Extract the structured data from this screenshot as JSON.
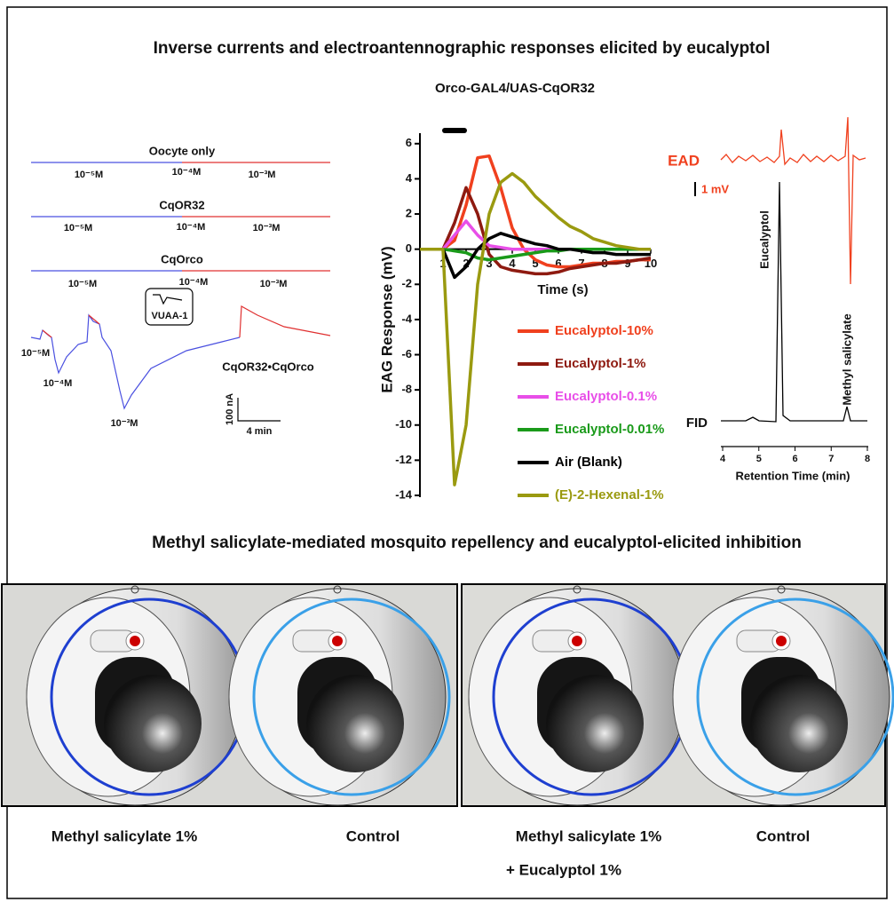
{
  "header": {
    "title": "Inverse currents and electroantennographic responses elicited by eucalyptol"
  },
  "left_panel": {
    "traces": [
      {
        "label": "Oocyte only",
        "concentrations": [
          "10⁻⁵M",
          "10⁻⁴M",
          "10⁻³M"
        ]
      },
      {
        "label": "CqOR32",
        "concentrations": [
          "10⁻⁵M",
          "10⁻⁴M",
          "10⁻³M"
        ]
      },
      {
        "label": "CqOrco",
        "concentrations": [
          "10⁻⁵M",
          "10⁻⁴M",
          "10⁻³M"
        ]
      },
      {
        "label": "CqOR32•CqOrco",
        "concentrations": [
          "10⁻⁵M",
          "10⁻⁴M",
          "10⁻³M"
        ]
      }
    ],
    "inset_label": "VUAA-1",
    "scale_y": "100 nA",
    "scale_x": "4 min"
  },
  "chart_data": {
    "type": "line",
    "title": "Orco-GAL4/UAS-CqOR32",
    "x_label": "Time (s)",
    "y_label": "EAG Response (mV)",
    "x": [
      0,
      0.5,
      1,
      1.5,
      2,
      2.5,
      3,
      3.5,
      4,
      4.5,
      5,
      5.5,
      6,
      6.5,
      7,
      7.5,
      8,
      8.5,
      9,
      9.5,
      10
    ],
    "xlim": [
      0,
      10
    ],
    "xticks": [
      1,
      2,
      3,
      4,
      5,
      6,
      7,
      8,
      9,
      10
    ],
    "ylim": [
      -14,
      7
    ],
    "yticks": [
      -14,
      -12,
      -10,
      -8,
      -6,
      -4,
      -2,
      0,
      2,
      4,
      6
    ],
    "series": [
      {
        "name": "Eucalyptol-10%",
        "color": "#f0401e",
        "values": [
          0,
          0,
          0,
          0.5,
          2.5,
          5.2,
          5.3,
          3.5,
          1.2,
          0,
          -0.6,
          -0.9,
          -1,
          -1,
          -0.9,
          -0.8,
          -0.8,
          -0.7,
          -0.7,
          -0.6,
          -0.6
        ]
      },
      {
        "name": "Eucalyptol-1%",
        "color": "#8e1a10",
        "values": [
          0,
          0,
          0,
          1.5,
          3.5,
          2,
          -0.3,
          -1,
          -1.2,
          -1.3,
          -1.4,
          -1.4,
          -1.3,
          -1.1,
          -1,
          -0.9,
          -0.8,
          -0.8,
          -0.7,
          -0.6,
          -0.5
        ]
      },
      {
        "name": "Eucalyptol-0.1%",
        "color": "#e84ee8",
        "values": [
          0,
          0,
          0,
          0.8,
          1.6,
          0.8,
          0.2,
          0.1,
          0,
          0,
          0,
          0,
          0,
          0,
          0,
          0,
          0,
          0,
          0,
          0,
          0
        ]
      },
      {
        "name": "Eucalyptol-0.01%",
        "color": "#1a9a1a",
        "values": [
          0,
          0,
          0,
          -0.1,
          -0.2,
          -0.5,
          -0.6,
          -0.5,
          -0.4,
          -0.3,
          -0.2,
          -0.1,
          -0.1,
          0,
          0,
          0,
          0,
          0,
          0,
          0,
          0
        ]
      },
      {
        "name": "Air (Blank)",
        "color": "#000000",
        "values": [
          0,
          0,
          0,
          -1.6,
          -1,
          0,
          0.6,
          0.9,
          0.7,
          0.5,
          0.3,
          0.2,
          0,
          0,
          -0.1,
          -0.2,
          -0.2,
          -0.3,
          -0.3,
          -0.3,
          -0.3
        ]
      },
      {
        "name": "(E)-2-Hexenal-1%",
        "color": "#9a9a10",
        "values": [
          0,
          0,
          0,
          -13.4,
          -10,
          -2,
          2,
          3.8,
          4.3,
          3.8,
          3,
          2.4,
          1.8,
          1.3,
          1,
          0.6,
          0.4,
          0.2,
          0.1,
          0,
          0
        ]
      }
    ]
  },
  "gc_panel": {
    "ead_label": "EAD",
    "scale_label": "1 mV",
    "fid_label": "FID",
    "x_label": "Retention Time (min)",
    "xticks": [
      4,
      5,
      6,
      7,
      8
    ],
    "peaks": [
      "Eucalyptol",
      "Methyl salicylate"
    ]
  },
  "bottom": {
    "title": "Methyl salicylate-mediated mosquito repellency and eucalyptol-elicited inhibition",
    "captions": [
      "Methyl salicylate 1%",
      "Control",
      "Methyl salicylate 1%",
      "Control"
    ],
    "caption_extra": "+ Eucalyptol 1%"
  }
}
